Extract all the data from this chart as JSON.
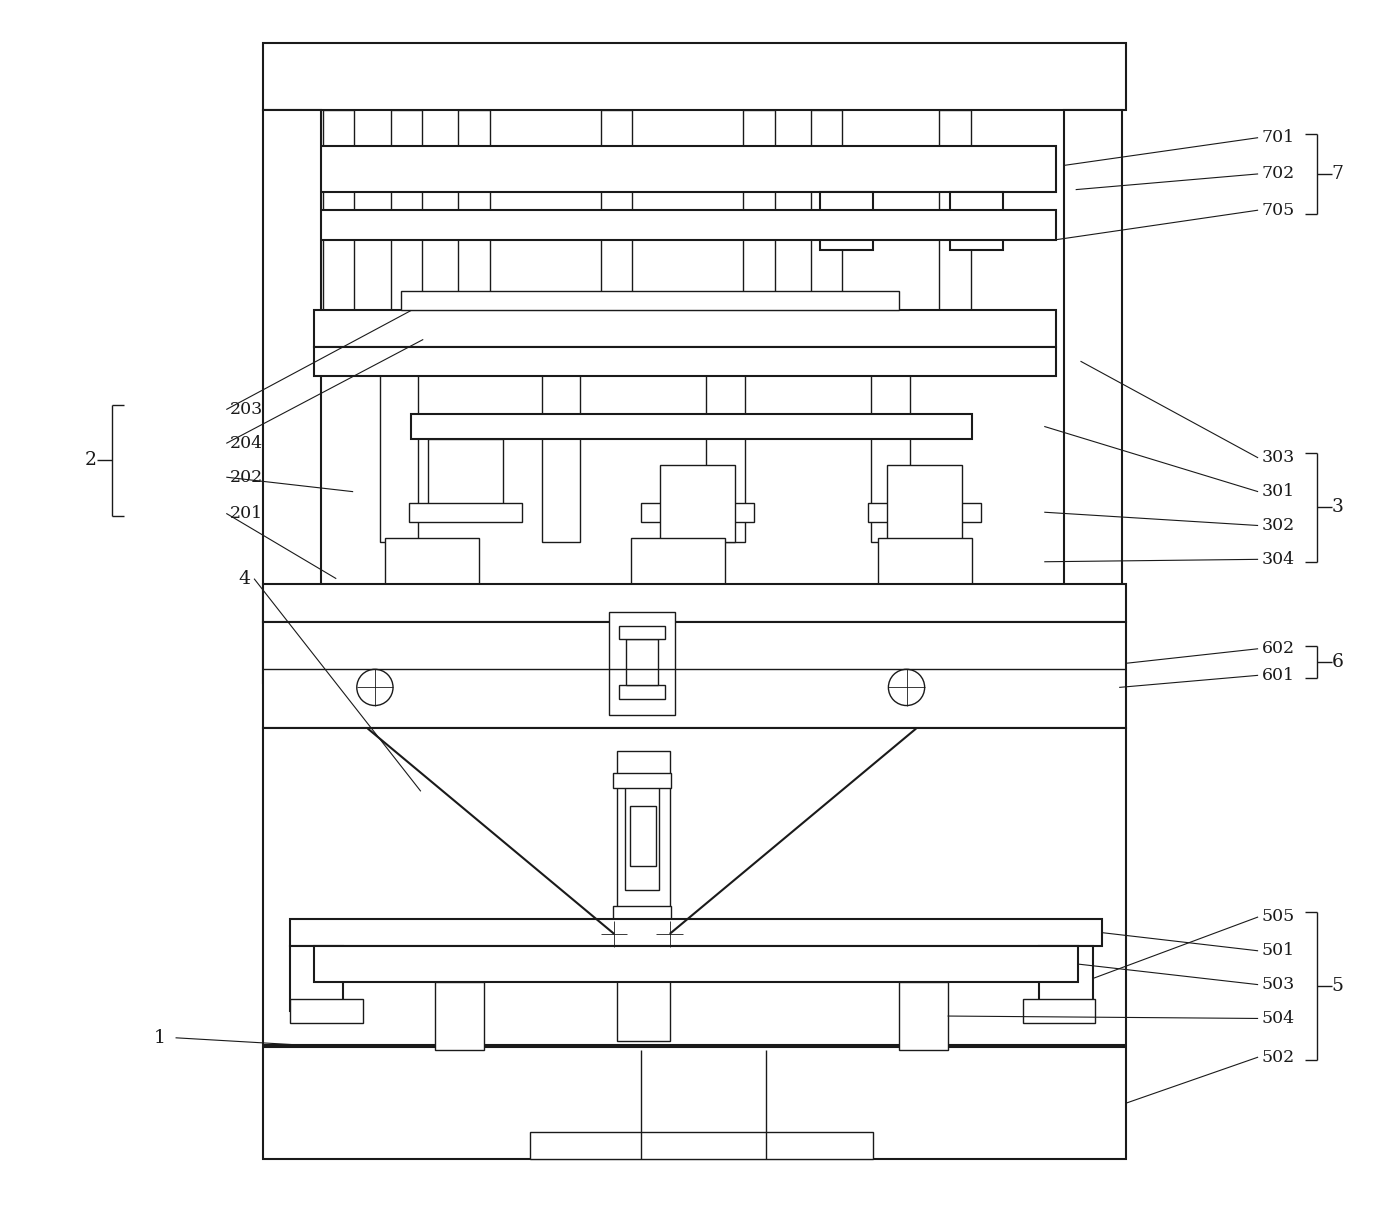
{
  "bg_color": "#ffffff",
  "line_color": "#1a1a1a",
  "lw": 1.5,
  "thin_lw": 1.0,
  "fig_w": 13.95,
  "fig_h": 12.25
}
